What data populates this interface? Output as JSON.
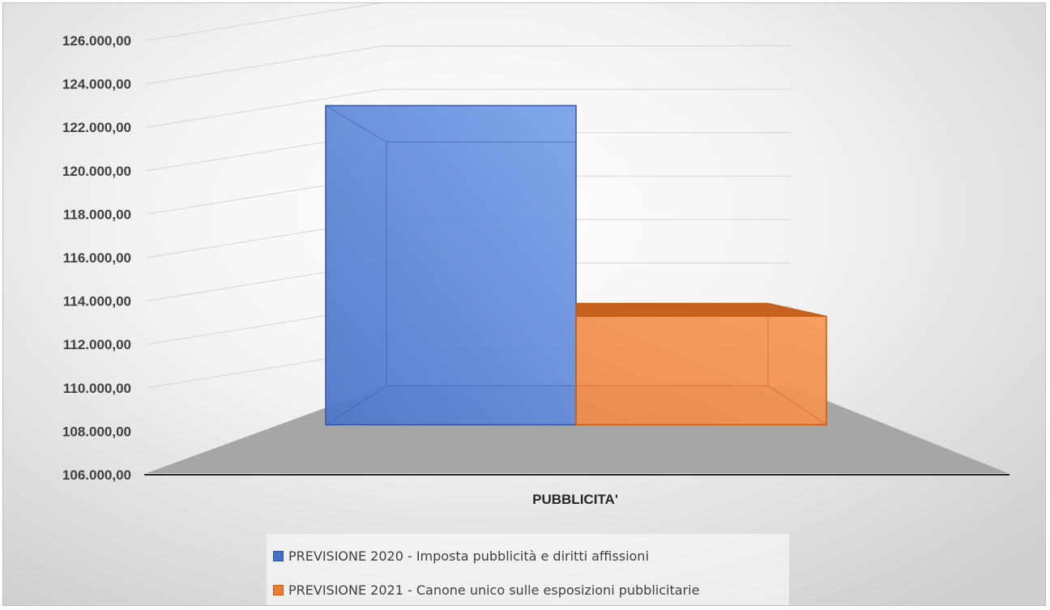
{
  "chart_data": {
    "type": "bar",
    "categories": [
      "PUBBLICITA'"
    ],
    "series": [
      {
        "name": "PREVISIONE  2020 - Imposta pubblicità e diritti affissioni",
        "values": [
          123000
        ],
        "color": "#4472C4"
      },
      {
        "name": "PREVISIONE 2021 - Canone unico sulle esposizioni pubblicitarie",
        "values": [
          113300
        ],
        "color": "#ED7D31"
      }
    ],
    "yticks": [
      "106.000,00",
      "108.000,00",
      "110.000,00",
      "112.000,00",
      "114.000,00",
      "116.000,00",
      "118.000,00",
      "120.000,00",
      "122.000,00",
      "124.000,00",
      "126.000,00"
    ],
    "ylim": [
      106000,
      126000
    ],
    "base_value": 108300,
    "title": "",
    "xlabel": "",
    "ylabel": "",
    "grid": true,
    "legend_position": "bottom",
    "style": "3d-clustered-column"
  }
}
